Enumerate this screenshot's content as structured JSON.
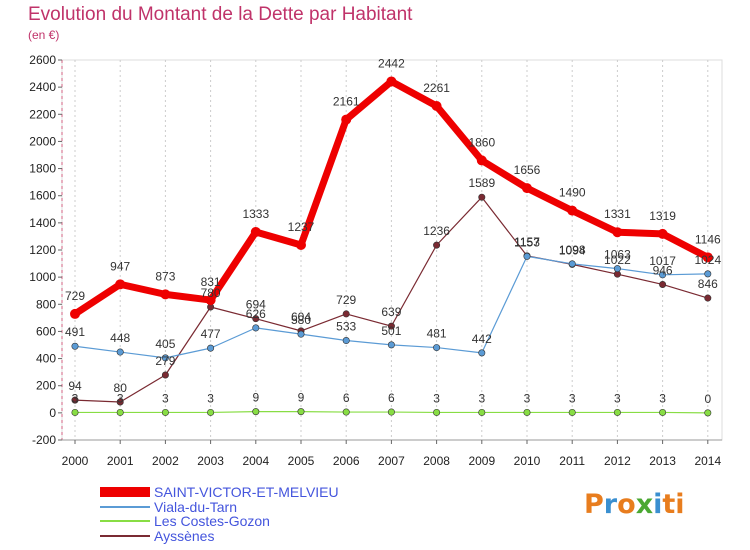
{
  "title": "Evolution du Montant de la Dette par Habitant",
  "subtitle": "(en €)",
  "logo": {
    "letters": [
      "P",
      "r",
      "o",
      "x",
      "i",
      "t",
      "i"
    ],
    "colors": [
      "#e87d1e",
      "#3a8fd0",
      "#e87d1e",
      "#4aa832",
      "#3a8fd0",
      "#e87d1e",
      "#e87d1e"
    ]
  },
  "chart_data": {
    "type": "line",
    "x": [
      "2000",
      "2001",
      "2002",
      "2003",
      "2004",
      "2005",
      "2006",
      "2007",
      "2008",
      "2009",
      "2010",
      "2011",
      "2012",
      "2013",
      "2014"
    ],
    "ylim": [
      -200,
      2600
    ],
    "yticks": [
      "-200",
      "0",
      "200",
      "400",
      "600",
      "800",
      "1000",
      "1200",
      "1400",
      "1600",
      "1800",
      "2000",
      "2200",
      "2400",
      "2600"
    ],
    "grid": "vertical-dashed",
    "legend": "bottom-left",
    "series": [
      {
        "name": "SAINT-VICTOR-ET-MELVIEU",
        "color": "#ee0000",
        "values": [
          729,
          947,
          873,
          831,
          1333,
          1237,
          2161,
          2442,
          2261,
          1860,
          1656,
          1490,
          1331,
          1319,
          1146
        ],
        "labels": [
          "729",
          "947",
          "873",
          "831",
          "1333",
          "1237",
          "2161",
          "2442",
          "2261",
          "1860",
          "1656",
          "1490",
          "1331",
          "1319",
          "1146"
        ]
      },
      {
        "name": "Viala-du-Tarn",
        "color": "#5b9bd5",
        "values": [
          491,
          448,
          405,
          477,
          626,
          580,
          533,
          501,
          481,
          442,
          1153,
          1098,
          1063,
          1017,
          1024
        ],
        "labels": [
          "491",
          "448",
          "405",
          "477",
          "626",
          "580",
          "533",
          "501",
          "481",
          "442",
          "1153",
          "1098",
          "1063",
          "1017",
          "1024"
        ]
      },
      {
        "name": "Les Costes-Gozon",
        "color": "#88dd44",
        "values": [
          3,
          3,
          3,
          3,
          9,
          9,
          6,
          6,
          3,
          3,
          3,
          3,
          3,
          3,
          0
        ],
        "labels": [
          "3",
          "3",
          "3",
          "3",
          "9",
          "9",
          "6",
          "6",
          "3",
          "3",
          "3",
          "3",
          "3",
          "3",
          "0"
        ]
      },
      {
        "name": "Ayssènes",
        "color": "#7a2a32",
        "values": [
          94,
          80,
          279,
          780,
          694,
          604,
          729,
          639,
          1236,
          1589,
          1157,
          1094,
          1022,
          946,
          846
        ],
        "labels": [
          "94",
          "80",
          "279",
          "780",
          "694",
          "604",
          "729",
          "639",
          "1236",
          "1589",
          "1157",
          "1094",
          "1022",
          "946",
          "846"
        ]
      }
    ]
  }
}
